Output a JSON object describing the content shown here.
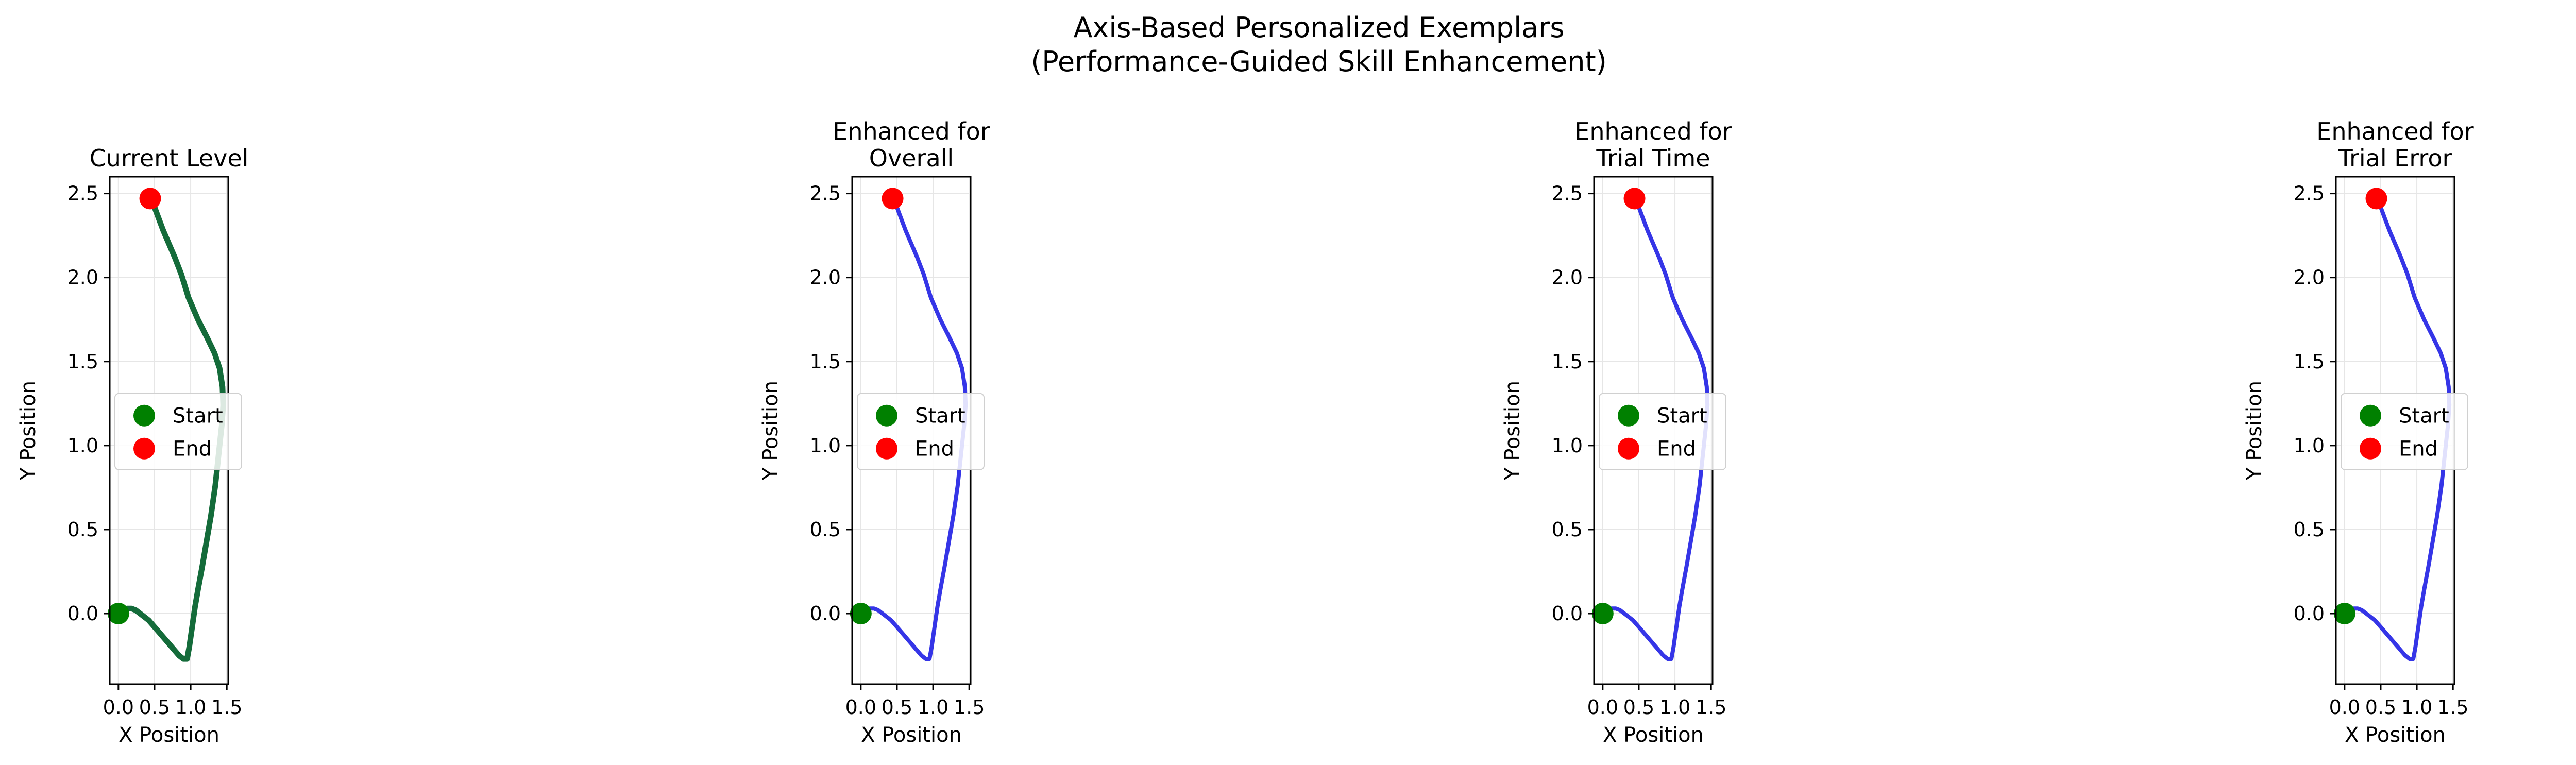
{
  "figure": {
    "title_line1": "Axis-Based Personalized Exemplars",
    "title_line2": "(Performance-Guided Skill Enhancement)"
  },
  "colors": {
    "current_path": "#146b3a",
    "enhanced_path": "#2a2ae6",
    "start_marker": "#008000",
    "end_marker": "#ff0000",
    "grid": "#e6e6e6"
  },
  "chart_data": [
    {
      "type": "line",
      "title_lines": [
        "Current Level"
      ],
      "xlabel": "X Position",
      "ylabel": "Y Position",
      "xlim": [
        -0.12,
        1.52
      ],
      "ylim": [
        -0.42,
        2.6
      ],
      "xticks": [
        "0.0",
        "0.5",
        "1.0",
        "1.5"
      ],
      "yticks": [
        "0.0",
        "0.5",
        "1.0",
        "1.5",
        "2.0",
        "2.5"
      ],
      "grid": true,
      "legend": {
        "position": "center-left",
        "entries": [
          "Start",
          "End"
        ]
      },
      "series": [
        {
          "style": "current",
          "x": [
            0.0,
            0.06,
            0.12,
            0.18,
            0.24,
            0.3,
            0.36,
            0.42,
            0.48,
            0.54,
            0.6,
            0.66,
            0.72,
            0.78,
            0.84,
            0.9,
            0.95,
            0.98,
            1.02,
            1.06,
            1.1,
            1.16,
            1.22,
            1.28,
            1.34,
            1.39,
            1.43,
            1.45,
            1.44,
            1.4,
            1.33,
            1.23,
            1.1,
            0.97,
            0.87,
            0.78,
            0.7,
            0.62,
            0.55,
            0.49,
            0.44
          ],
          "y": [
            0.0,
            0.02,
            0.03,
            0.03,
            0.02,
            0.0,
            -0.02,
            -0.04,
            -0.07,
            -0.1,
            -0.13,
            -0.16,
            -0.19,
            -0.22,
            -0.25,
            -0.27,
            -0.27,
            -0.2,
            -0.08,
            0.04,
            0.14,
            0.28,
            0.43,
            0.58,
            0.76,
            0.96,
            1.12,
            1.24,
            1.35,
            1.46,
            1.55,
            1.64,
            1.75,
            1.88,
            2.02,
            2.12,
            2.2,
            2.28,
            2.36,
            2.43,
            2.48
          ]
        }
      ],
      "markers": {
        "start": {
          "x": 0.0,
          "y": 0.0
        },
        "end": {
          "x": 0.44,
          "y": 2.47
        }
      }
    },
    {
      "type": "line",
      "title_lines": [
        "Enhanced for",
        "Overall"
      ],
      "xlabel": "X Position",
      "ylabel": "Y Position",
      "xlim": [
        -0.12,
        1.52
      ],
      "ylim": [
        -0.42,
        2.6
      ],
      "xticks": [
        "0.0",
        "0.5",
        "1.0",
        "1.5"
      ],
      "yticks": [
        "0.0",
        "0.5",
        "1.0",
        "1.5",
        "2.0",
        "2.5"
      ],
      "grid": true,
      "legend": {
        "position": "center-left",
        "entries": [
          "Start",
          "End"
        ]
      },
      "series": [
        {
          "style": "enhanced",
          "x": [
            0.0,
            0.06,
            0.12,
            0.18,
            0.24,
            0.3,
            0.36,
            0.42,
            0.48,
            0.54,
            0.6,
            0.66,
            0.72,
            0.78,
            0.84,
            0.9,
            0.95,
            0.98,
            1.02,
            1.06,
            1.1,
            1.16,
            1.22,
            1.28,
            1.34,
            1.39,
            1.43,
            1.45,
            1.44,
            1.4,
            1.33,
            1.23,
            1.1,
            0.97,
            0.87,
            0.78,
            0.7,
            0.62,
            0.55,
            0.49,
            0.44
          ],
          "y": [
            0.0,
            0.02,
            0.03,
            0.03,
            0.02,
            0.0,
            -0.02,
            -0.04,
            -0.07,
            -0.1,
            -0.13,
            -0.16,
            -0.19,
            -0.22,
            -0.25,
            -0.27,
            -0.27,
            -0.2,
            -0.08,
            0.04,
            0.14,
            0.28,
            0.43,
            0.58,
            0.76,
            0.96,
            1.12,
            1.24,
            1.35,
            1.46,
            1.55,
            1.64,
            1.75,
            1.88,
            2.02,
            2.12,
            2.2,
            2.28,
            2.36,
            2.43,
            2.48
          ]
        }
      ],
      "markers": {
        "start": {
          "x": 0.0,
          "y": 0.0
        },
        "end": {
          "x": 0.44,
          "y": 2.47
        }
      }
    },
    {
      "type": "line",
      "title_lines": [
        "Enhanced for",
        "Trial Time"
      ],
      "xlabel": "X Position",
      "ylabel": "Y Position",
      "xlim": [
        -0.12,
        1.52
      ],
      "ylim": [
        -0.42,
        2.6
      ],
      "xticks": [
        "0.0",
        "0.5",
        "1.0",
        "1.5"
      ],
      "yticks": [
        "0.0",
        "0.5",
        "1.0",
        "1.5",
        "2.0",
        "2.5"
      ],
      "grid": true,
      "legend": {
        "position": "center-left",
        "entries": [
          "Start",
          "End"
        ]
      },
      "series": [
        {
          "style": "enhanced",
          "x": [
            0.0,
            0.06,
            0.12,
            0.18,
            0.24,
            0.3,
            0.36,
            0.42,
            0.48,
            0.54,
            0.6,
            0.66,
            0.72,
            0.78,
            0.84,
            0.9,
            0.95,
            0.98,
            1.02,
            1.06,
            1.1,
            1.16,
            1.22,
            1.28,
            1.34,
            1.39,
            1.43,
            1.45,
            1.44,
            1.4,
            1.33,
            1.23,
            1.1,
            0.97,
            0.87,
            0.78,
            0.7,
            0.62,
            0.55,
            0.49,
            0.44
          ],
          "y": [
            0.0,
            0.02,
            0.03,
            0.03,
            0.02,
            0.0,
            -0.02,
            -0.04,
            -0.07,
            -0.1,
            -0.13,
            -0.16,
            -0.19,
            -0.22,
            -0.25,
            -0.27,
            -0.27,
            -0.2,
            -0.08,
            0.04,
            0.14,
            0.28,
            0.43,
            0.58,
            0.76,
            0.96,
            1.12,
            1.24,
            1.35,
            1.46,
            1.55,
            1.64,
            1.75,
            1.88,
            2.02,
            2.12,
            2.2,
            2.28,
            2.36,
            2.43,
            2.48
          ]
        }
      ],
      "markers": {
        "start": {
          "x": 0.0,
          "y": 0.0
        },
        "end": {
          "x": 0.44,
          "y": 2.47
        }
      }
    },
    {
      "type": "line",
      "title_lines": [
        "Enhanced for",
        "Trial Error"
      ],
      "xlabel": "X Position",
      "ylabel": "Y Position",
      "xlim": [
        -0.12,
        1.52
      ],
      "ylim": [
        -0.42,
        2.6
      ],
      "xticks": [
        "0.0",
        "0.5",
        "1.0",
        "1.5"
      ],
      "yticks": [
        "0.0",
        "0.5",
        "1.0",
        "1.5",
        "2.0",
        "2.5"
      ],
      "grid": true,
      "legend": {
        "position": "center-left",
        "entries": [
          "Start",
          "End"
        ]
      },
      "series": [
        {
          "style": "enhanced",
          "x": [
            0.0,
            0.06,
            0.12,
            0.18,
            0.24,
            0.3,
            0.36,
            0.42,
            0.48,
            0.54,
            0.6,
            0.66,
            0.72,
            0.78,
            0.84,
            0.9,
            0.95,
            0.98,
            1.02,
            1.06,
            1.1,
            1.16,
            1.22,
            1.28,
            1.34,
            1.39,
            1.43,
            1.45,
            1.44,
            1.4,
            1.33,
            1.23,
            1.1,
            0.97,
            0.87,
            0.78,
            0.7,
            0.62,
            0.55,
            0.49,
            0.44
          ],
          "y": [
            0.0,
            0.02,
            0.03,
            0.03,
            0.02,
            0.0,
            -0.02,
            -0.04,
            -0.07,
            -0.1,
            -0.13,
            -0.16,
            -0.19,
            -0.22,
            -0.25,
            -0.27,
            -0.27,
            -0.2,
            -0.08,
            0.04,
            0.14,
            0.28,
            0.43,
            0.58,
            0.76,
            0.96,
            1.12,
            1.24,
            1.35,
            1.46,
            1.55,
            1.64,
            1.75,
            1.88,
            2.02,
            2.12,
            2.2,
            2.28,
            2.36,
            2.43,
            2.48
          ]
        }
      ],
      "markers": {
        "start": {
          "x": 0.0,
          "y": 0.0
        },
        "end": {
          "x": 0.44,
          "y": 2.47
        }
      }
    }
  ]
}
